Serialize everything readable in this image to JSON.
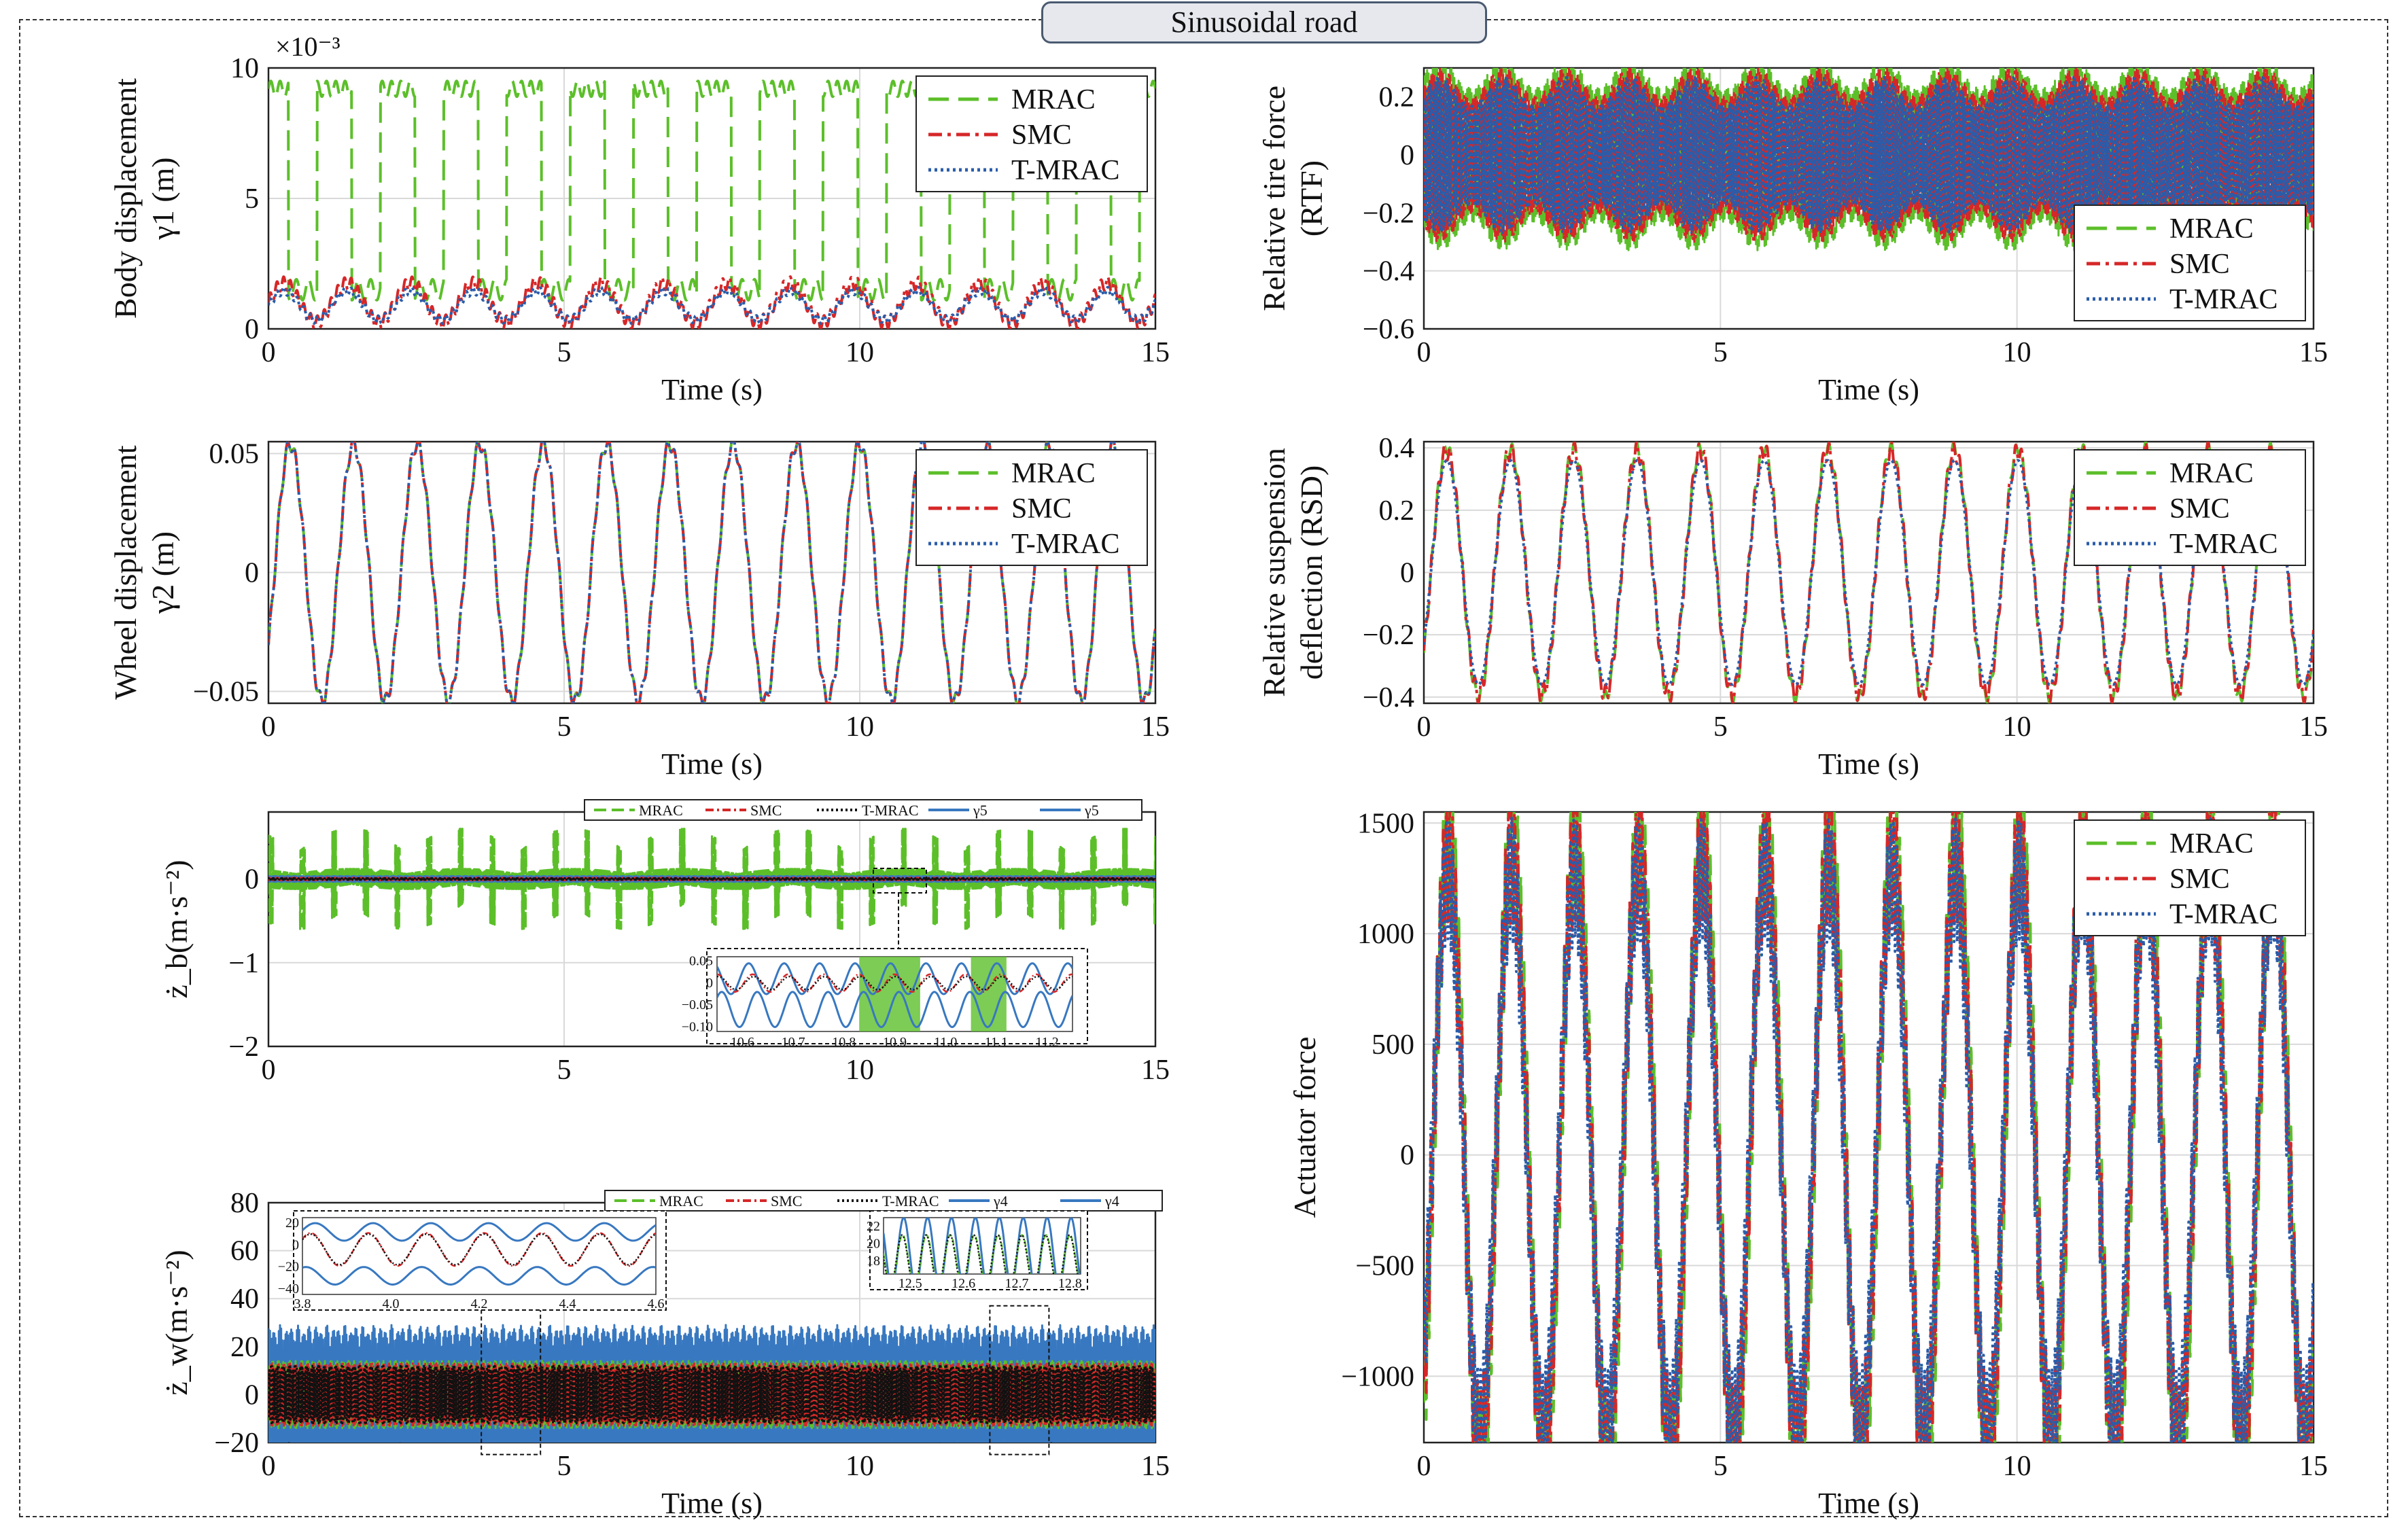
{
  "header": {
    "title": "Sinusoidal road"
  },
  "colors": {
    "mrac": "#5cbf2a",
    "smc": "#d62728",
    "tmrac": "#2a5caa",
    "ref": "#3878c0",
    "grid": "#d9d9d9"
  },
  "chart_data": [
    {
      "id": "body",
      "type": "line",
      "ylabel": [
        "Body displacement",
        "γ1 (m)"
      ],
      "xlabel": "Time (s)",
      "xlim": [
        0,
        15
      ],
      "ylim": [
        0,
        10
      ],
      "xticks": [
        "0",
        "5",
        "10",
        "15"
      ],
      "yticks": [
        "0",
        "5",
        "10"
      ],
      "yexp": "×10⁻³",
      "series": [
        {
          "name": "MRAC",
          "desc": "square-wave oscillation between ~1.5 and ~9.5 (x10^-3 m), ~1.07 s period"
        },
        {
          "name": "SMC",
          "desc": "oscillation ~0.2 to ~1.8 (x10^-3 m)"
        },
        {
          "name": "T-MRAC",
          "desc": "oscillation ~0.3 to ~1.5 (x10^-3 m)"
        }
      ],
      "legend": "top-right"
    },
    {
      "id": "rtf",
      "type": "line",
      "ylabel": [
        "Relative tire force",
        "(RTF)"
      ],
      "xlabel": "Time (s)",
      "xlim": [
        0,
        15
      ],
      "ylim": [
        -0.6,
        0.3
      ],
      "xticks": [
        "0",
        "5",
        "10",
        "15"
      ],
      "yticks": [
        "−0.6",
        "−0.4",
        "−0.2",
        "0",
        "0.2"
      ],
      "series": [
        {
          "name": "MRAC",
          "desc": "dense oscillation, envelope ±0.30"
        },
        {
          "name": "SMC",
          "desc": "dense oscillation, envelope ±0.28"
        },
        {
          "name": "T-MRAC",
          "desc": "dense oscillation, envelope ±0.25"
        }
      ],
      "legend": "bottom-right"
    },
    {
      "id": "wheel",
      "type": "line",
      "ylabel": [
        "Wheel displacement",
        "γ2 (m)"
      ],
      "xlabel": "Time (s)",
      "xlim": [
        0,
        15
      ],
      "ylim": [
        -0.055,
        0.055
      ],
      "xticks": [
        "0",
        "5",
        "10",
        "15"
      ],
      "yticks": [
        "−0.05",
        "0",
        "0.05"
      ],
      "series": [
        {
          "name": "MRAC",
          "amplitude": 0.054
        },
        {
          "name": "SMC",
          "amplitude": 0.054
        },
        {
          "name": "T-MRAC",
          "amplitude": 0.054
        }
      ],
      "legend": "top-right"
    },
    {
      "id": "rsd",
      "type": "line",
      "ylabel": [
        "Relative suspension",
        "deflection (RSD)"
      ],
      "xlabel": "Time (s)",
      "xlim": [
        0,
        15
      ],
      "ylim": [
        -0.42,
        0.42
      ],
      "xticks": [
        "0",
        "5",
        "10",
        "15"
      ],
      "yticks": [
        "−0.4",
        "−0.2",
        "0",
        "0.2",
        "0.4"
      ],
      "series": [
        {
          "name": "MRAC",
          "amplitude": 0.4
        },
        {
          "name": "SMC",
          "amplitude": 0.4
        },
        {
          "name": "T-MRAC",
          "amplitude": 0.36
        }
      ],
      "legend": "top-right"
    },
    {
      "id": "zb",
      "type": "line",
      "ylabel": [
        "ż_b(m·s⁻²)"
      ],
      "xlabel": "",
      "xlim": [
        0,
        15
      ],
      "ylim": [
        -2,
        0.8
      ],
      "xticks": [
        "0",
        "5",
        "10",
        "15"
      ],
      "yticks": [
        "−2",
        "−1",
        "0"
      ],
      "series": [
        {
          "name": "MRAC",
          "desc": "spikes up to ±0.7"
        },
        {
          "name": "SMC",
          "desc": "near 0"
        },
        {
          "name": "T-MRAC",
          "desc": "near 0"
        },
        {
          "name": "γ5",
          "desc": "near 0"
        },
        {
          "name": "γ5",
          "desc": "near 0"
        }
      ],
      "legend": "top-inline",
      "inset": {
        "xticks": [
          "10.6",
          "10.7",
          "10.8",
          "10.9",
          "11.0",
          "11.1",
          "11.2"
        ],
        "yticks": [
          "0.05",
          "0",
          "−0.05",
          "−0.10"
        ]
      }
    },
    {
      "id": "zw",
      "type": "line",
      "ylabel": [
        "ż_w(m·s⁻²)"
      ],
      "xlabel": "Time (s)",
      "xlim": [
        0,
        15
      ],
      "ylim": [
        -20,
        80
      ],
      "xticks": [
        "0",
        "5",
        "10",
        "15"
      ],
      "yticks": [
        "−20",
        "0",
        "20",
        "40",
        "60",
        "80"
      ],
      "series": [
        {
          "name": "MRAC",
          "desc": "oscillation ±15"
        },
        {
          "name": "SMC",
          "desc": "oscillation ±15"
        },
        {
          "name": "T-MRAC",
          "desc": "oscillation ±15"
        },
        {
          "name": "γ4",
          "desc": "oscillation ±27"
        },
        {
          "name": "γ4",
          "desc": "oscillation ±27"
        }
      ],
      "legend": "top-inline",
      "inset1": {
        "xticks": [
          "3.8",
          "4.0",
          "4.2",
          "4.4",
          "4.6"
        ],
        "yticks": [
          "20",
          "0",
          "−20",
          "−40"
        ]
      },
      "inset2": {
        "xticks": [
          "12.5",
          "12.6",
          "12.7",
          "12.8"
        ],
        "yticks": [
          "22",
          "20",
          "18"
        ]
      }
    },
    {
      "id": "act",
      "type": "line",
      "ylabel": [
        "Actuator force"
      ],
      "xlabel": "Time (s)",
      "xlim": [
        0,
        15
      ],
      "ylim": [
        -1300,
        1550
      ],
      "xticks": [
        "0",
        "5",
        "10",
        "15"
      ],
      "yticks": [
        "−1000",
        "−500",
        "0",
        "500",
        "1000",
        "1500"
      ],
      "series": [
        {
          "name": "MRAC",
          "amplitude": 1500
        },
        {
          "name": "SMC",
          "amplitude": 1400
        },
        {
          "name": "T-MRAC",
          "amplitude": 1300
        }
      ],
      "legend": "top-right"
    }
  ]
}
